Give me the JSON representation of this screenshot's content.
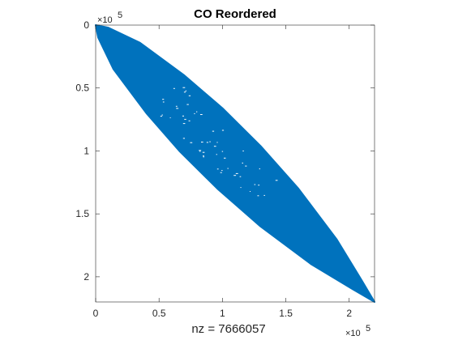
{
  "chart_data": {
    "type": "scatter",
    "title": "CO Reordered",
    "xlabel": "nz = 7666057",
    "ylabel": "",
    "xlim": [
      0,
      2.2
    ],
    "ylim": [
      0,
      2.2
    ],
    "y_reversed": true,
    "xticks": [
      0,
      0.5,
      1,
      1.5,
      2
    ],
    "yticks": [
      0,
      0.5,
      1,
      1.5,
      2
    ],
    "xtick_labels": [
      "0",
      "0.5",
      "1",
      "1.5",
      "2"
    ],
    "ytick_labels": [
      "0",
      "0.5",
      "1",
      "1.5",
      "2"
    ],
    "x_multiplier": "×10",
    "x_exponent": "5",
    "y_multiplier": "×10",
    "y_exponent": "5",
    "grid": false,
    "legend": "none",
    "series": [
      {
        "color": "#0072BD",
        "band_upper": [
          {
            "x": 0,
            "y": 0
          },
          {
            "x": 0.1,
            "y": 0.02
          },
          {
            "x": 0.35,
            "y": 0.14
          },
          {
            "x": 0.7,
            "y": 0.4
          },
          {
            "x": 1.0,
            "y": 0.66
          },
          {
            "x": 1.3,
            "y": 0.96
          },
          {
            "x": 1.6,
            "y": 1.3
          },
          {
            "x": 1.9,
            "y": 1.7
          },
          {
            "x": 2.1,
            "y": 2.03
          },
          {
            "x": 2.2,
            "y": 2.2
          }
        ],
        "band_lower": [
          {
            "x": 0,
            "y": 0
          },
          {
            "x": 0.02,
            "y": 0.1
          },
          {
            "x": 0.14,
            "y": 0.35
          },
          {
            "x": 0.4,
            "y": 0.7
          },
          {
            "x": 0.66,
            "y": 1.0
          },
          {
            "x": 0.96,
            "y": 1.3
          },
          {
            "x": 1.3,
            "y": 1.6
          },
          {
            "x": 1.7,
            "y": 1.9
          },
          {
            "x": 2.03,
            "y": 2.1
          },
          {
            "x": 2.2,
            "y": 2.2
          }
        ]
      }
    ]
  }
}
